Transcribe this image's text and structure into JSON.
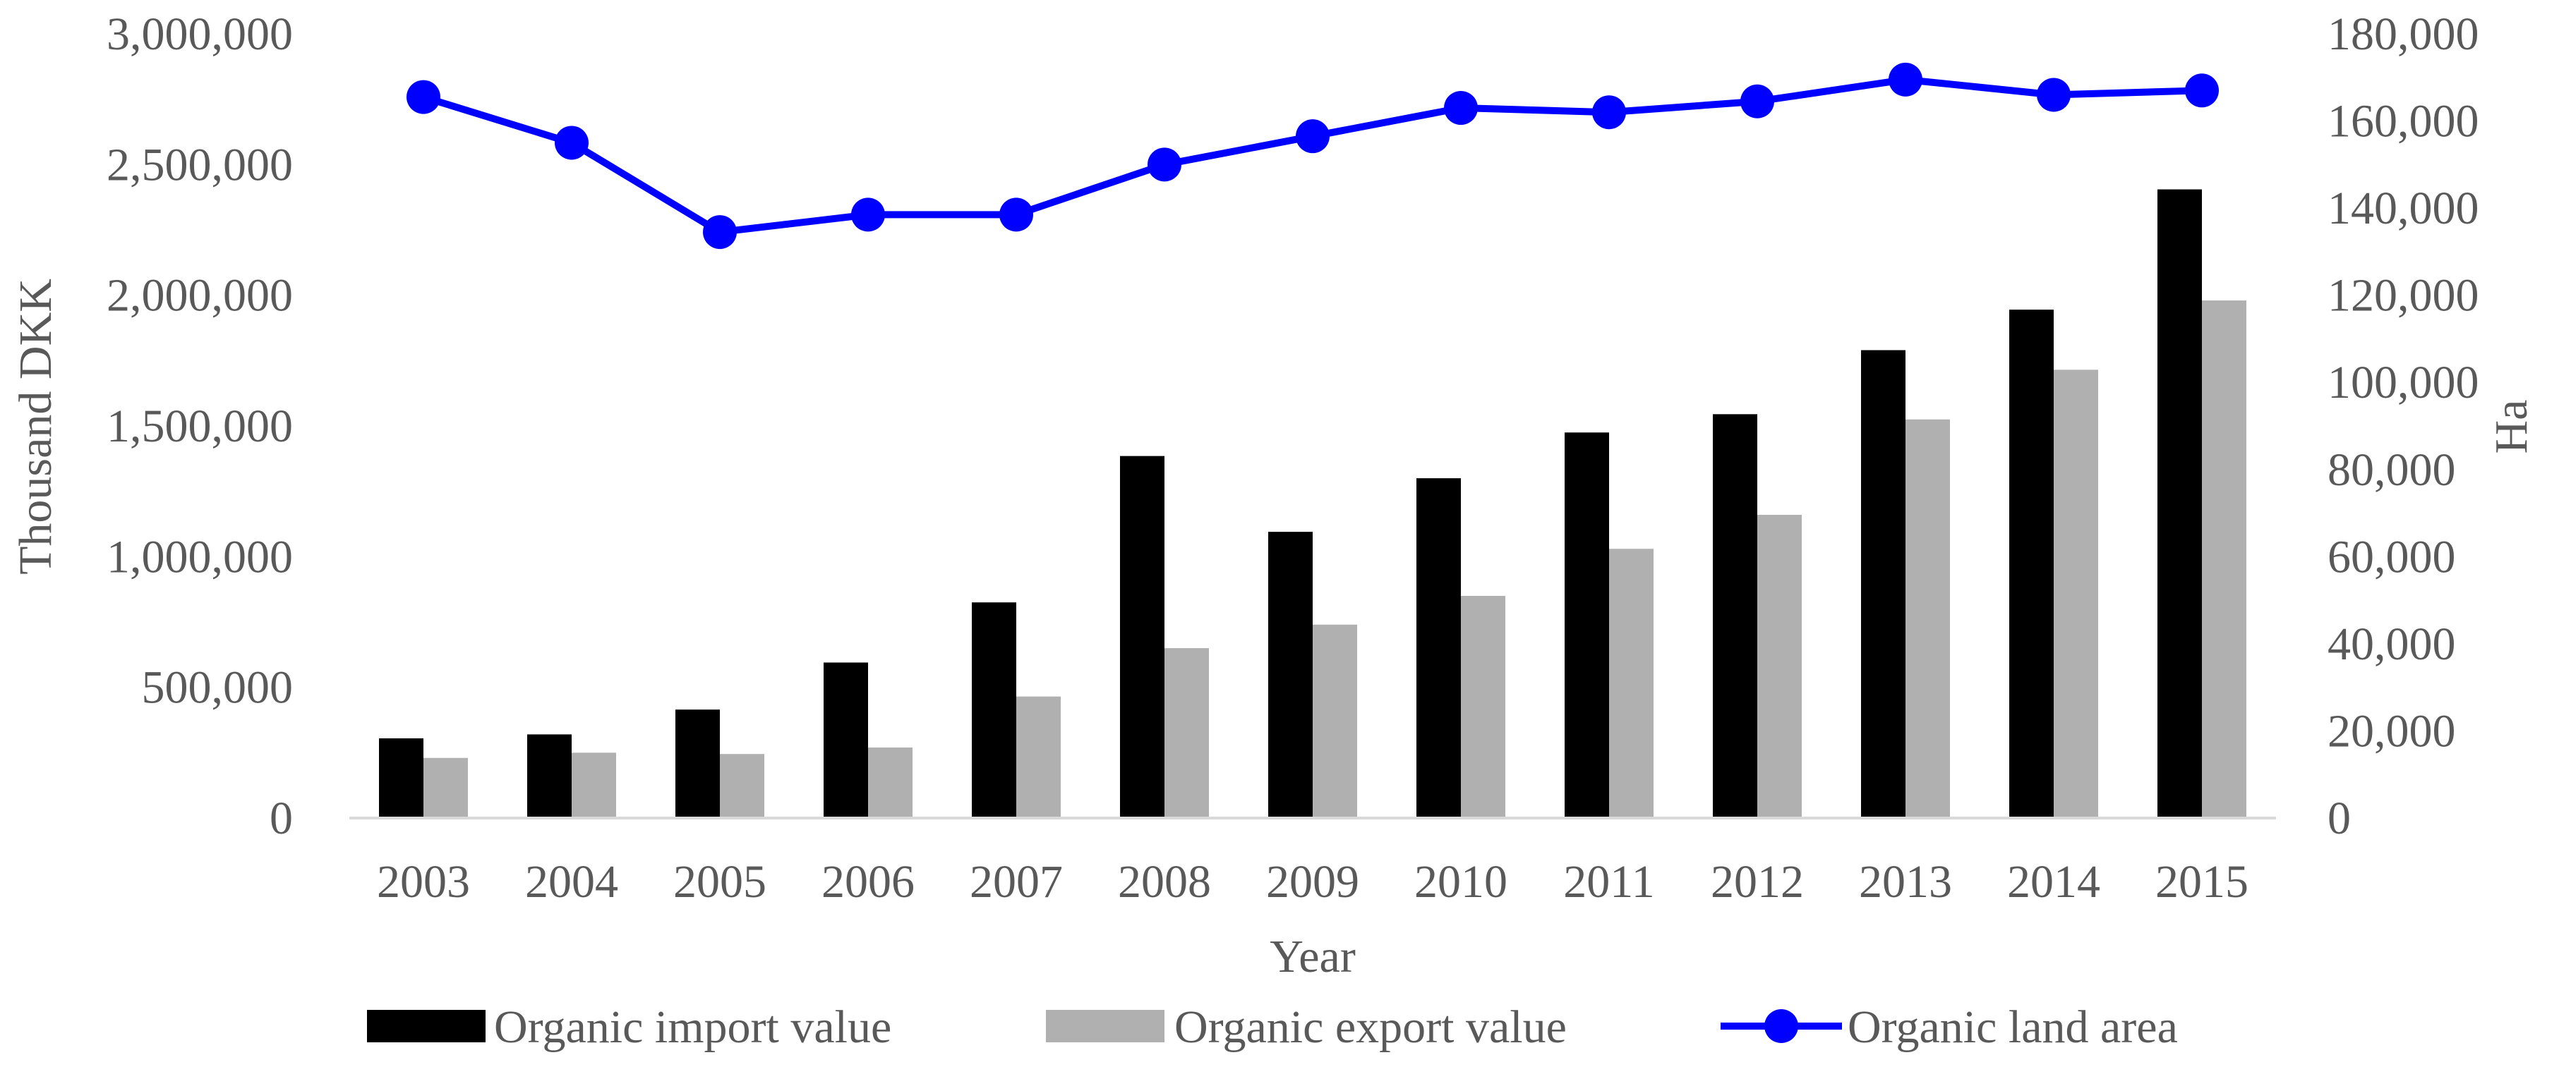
{
  "chart_data": {
    "type": "bar+line",
    "title": "",
    "categories": [
      "2003",
      "2004",
      "2005",
      "2006",
      "2007",
      "2008",
      "2009",
      "2010",
      "2011",
      "2012",
      "2013",
      "2014",
      "2015"
    ],
    "xlabel": "Year",
    "ylabel": "Thousand DKK",
    "y2label": "Ha",
    "ylim": [
      0,
      3000000
    ],
    "y2lim": [
      0,
      180000
    ],
    "yticks": [
      0,
      500000,
      1000000,
      1500000,
      2000000,
      2500000,
      3000000
    ],
    "yticklabels": [
      "0",
      "500,000",
      "1,000,000",
      "1,500,000",
      "2,000,000",
      "2,500,000",
      "3,000,000"
    ],
    "y2ticks": [
      0,
      20000,
      40000,
      60000,
      80000,
      100000,
      120000,
      140000,
      160000,
      180000
    ],
    "y2ticklabels": [
      "0",
      "20,000",
      "40,000",
      "60,000",
      "80,000",
      "100,000",
      "120,000",
      "140,000",
      "160,000",
      "180,000"
    ],
    "grid": false,
    "legend_position": "bottom",
    "series": [
      {
        "name": "Organic import value",
        "type": "bar",
        "axis": "left",
        "color": "#000000",
        "values": [
          305000,
          320000,
          415000,
          595000,
          825000,
          1385000,
          1095000,
          1300000,
          1475000,
          1545000,
          1790000,
          1945000,
          2405000
        ]
      },
      {
        "name": "Organic export value",
        "type": "bar",
        "axis": "left",
        "color": "#b0b0b0",
        "values": [
          230000,
          250000,
          245000,
          270000,
          465000,
          650000,
          740000,
          850000,
          1030000,
          1160000,
          1525000,
          1715000,
          1980000
        ]
      },
      {
        "name": "Organic land area",
        "type": "line",
        "axis": "right",
        "color": "#0000ff",
        "values": [
          165500,
          155000,
          134500,
          138500,
          138500,
          150000,
          156500,
          163000,
          162000,
          164500,
          169500,
          166000,
          167000
        ]
      }
    ]
  }
}
